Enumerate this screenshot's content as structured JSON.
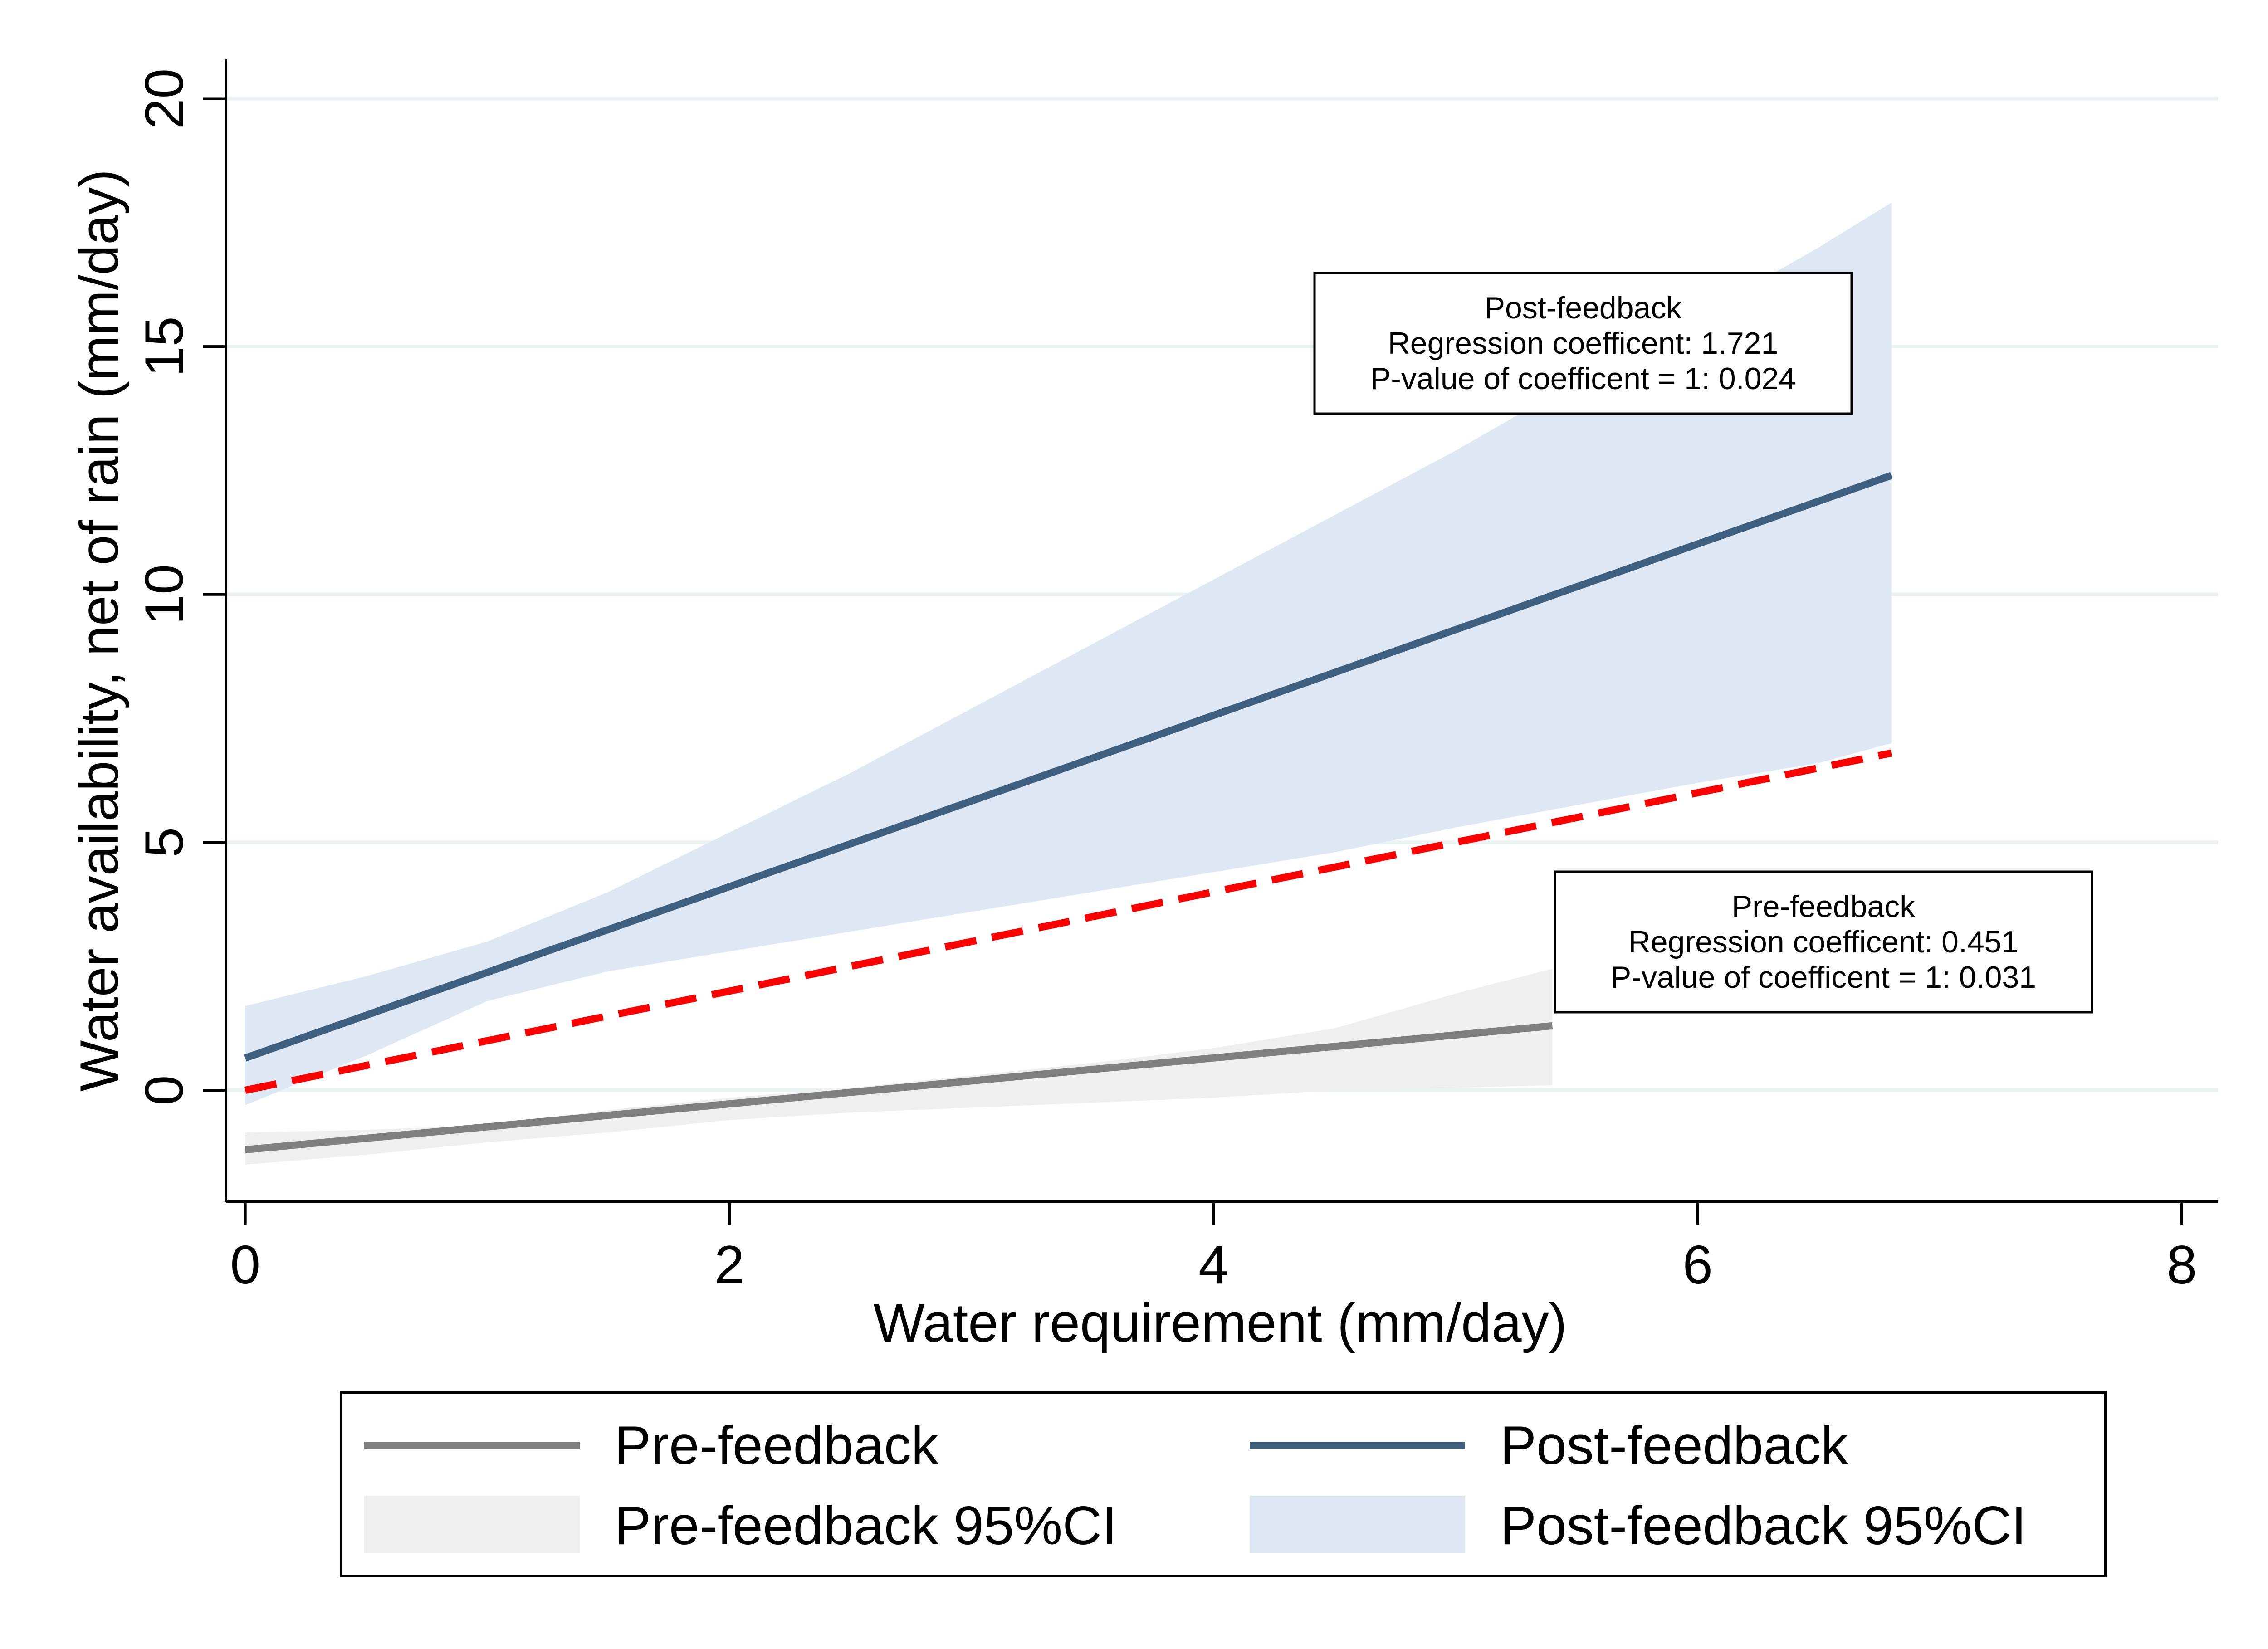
{
  "chart_data": {
    "type": "line",
    "xlabel": "Water requirement (mm/day)",
    "ylabel": "Water availability, net of rain (mm/day)",
    "xlim": [
      -0.08,
      8.15
    ],
    "ylim": [
      -2.25,
      20.8
    ],
    "xticks": [
      0,
      2,
      4,
      6,
      8
    ],
    "yticks": [
      0,
      5,
      10,
      15,
      20
    ],
    "grid": "horizontal",
    "series": [
      {
        "name": "Pre-feedback",
        "color": "#7f7f7f",
        "x": [
          0,
          5.4
        ],
        "y": [
          -1.2,
          1.3
        ],
        "ci_name": "Pre-feedback 95%CI",
        "ci_color": "#efefef",
        "ci_x": [
          0,
          0.5,
          1,
          1.5,
          2,
          2.5,
          3,
          3.5,
          4,
          4.5,
          5,
          5.4
        ],
        "ci_lower": [
          -1.5,
          -1.3,
          -1.05,
          -0.85,
          -0.6,
          -0.45,
          -0.35,
          -0.25,
          -0.15,
          0.0,
          0.05,
          0.1
        ],
        "ci_upper": [
          -0.85,
          -0.8,
          -0.7,
          -0.4,
          -0.15,
          0.05,
          0.3,
          0.55,
          0.85,
          1.25,
          1.95,
          2.45
        ]
      },
      {
        "name": "Post-feedback",
        "color": "#3f5f7f",
        "x": [
          0,
          6.8
        ],
        "y": [
          0.65,
          12.4
        ],
        "ci_name": "Post-feedback 95%CI",
        "ci_color": "#dde8f4",
        "ci_x": [
          0,
          0.5,
          1,
          1.5,
          2,
          2.5,
          3,
          3.5,
          4,
          4.5,
          5,
          5.5,
          6,
          6.5,
          6.8
        ],
        "ci_lower": [
          -0.3,
          0.7,
          1.8,
          2.4,
          2.8,
          3.2,
          3.6,
          4.0,
          4.4,
          4.8,
          5.3,
          5.75,
          6.2,
          6.6,
          7.0
        ],
        "ci_upper": [
          1.7,
          2.3,
          3.0,
          4.0,
          5.2,
          6.4,
          7.7,
          9.0,
          10.3,
          11.6,
          12.9,
          14.3,
          15.6,
          17.0,
          17.9
        ]
      },
      {
        "name": "45-degree reference",
        "color": "#ff0000",
        "dashed": true,
        "x": [
          0,
          6.8
        ],
        "y": [
          0,
          6.8
        ]
      }
    ],
    "annotations": [
      {
        "anchor": "upper-center-right",
        "lines": [
          "Post-feedback",
          "Regression coefficent: 1.721",
          "P-value of coefficent = 1: 0.024"
        ]
      },
      {
        "anchor": "lower-right",
        "lines": [
          "Pre-feedback",
          "Regression coefficent: 0.451",
          "P-value of coefficent = 1: 0.031"
        ]
      }
    ],
    "legend": {
      "position": "bottom",
      "entries": [
        "Pre-feedback",
        "Post-feedback",
        "Pre-feedback 95%CI",
        "Post-feedback 95%CI"
      ]
    }
  }
}
